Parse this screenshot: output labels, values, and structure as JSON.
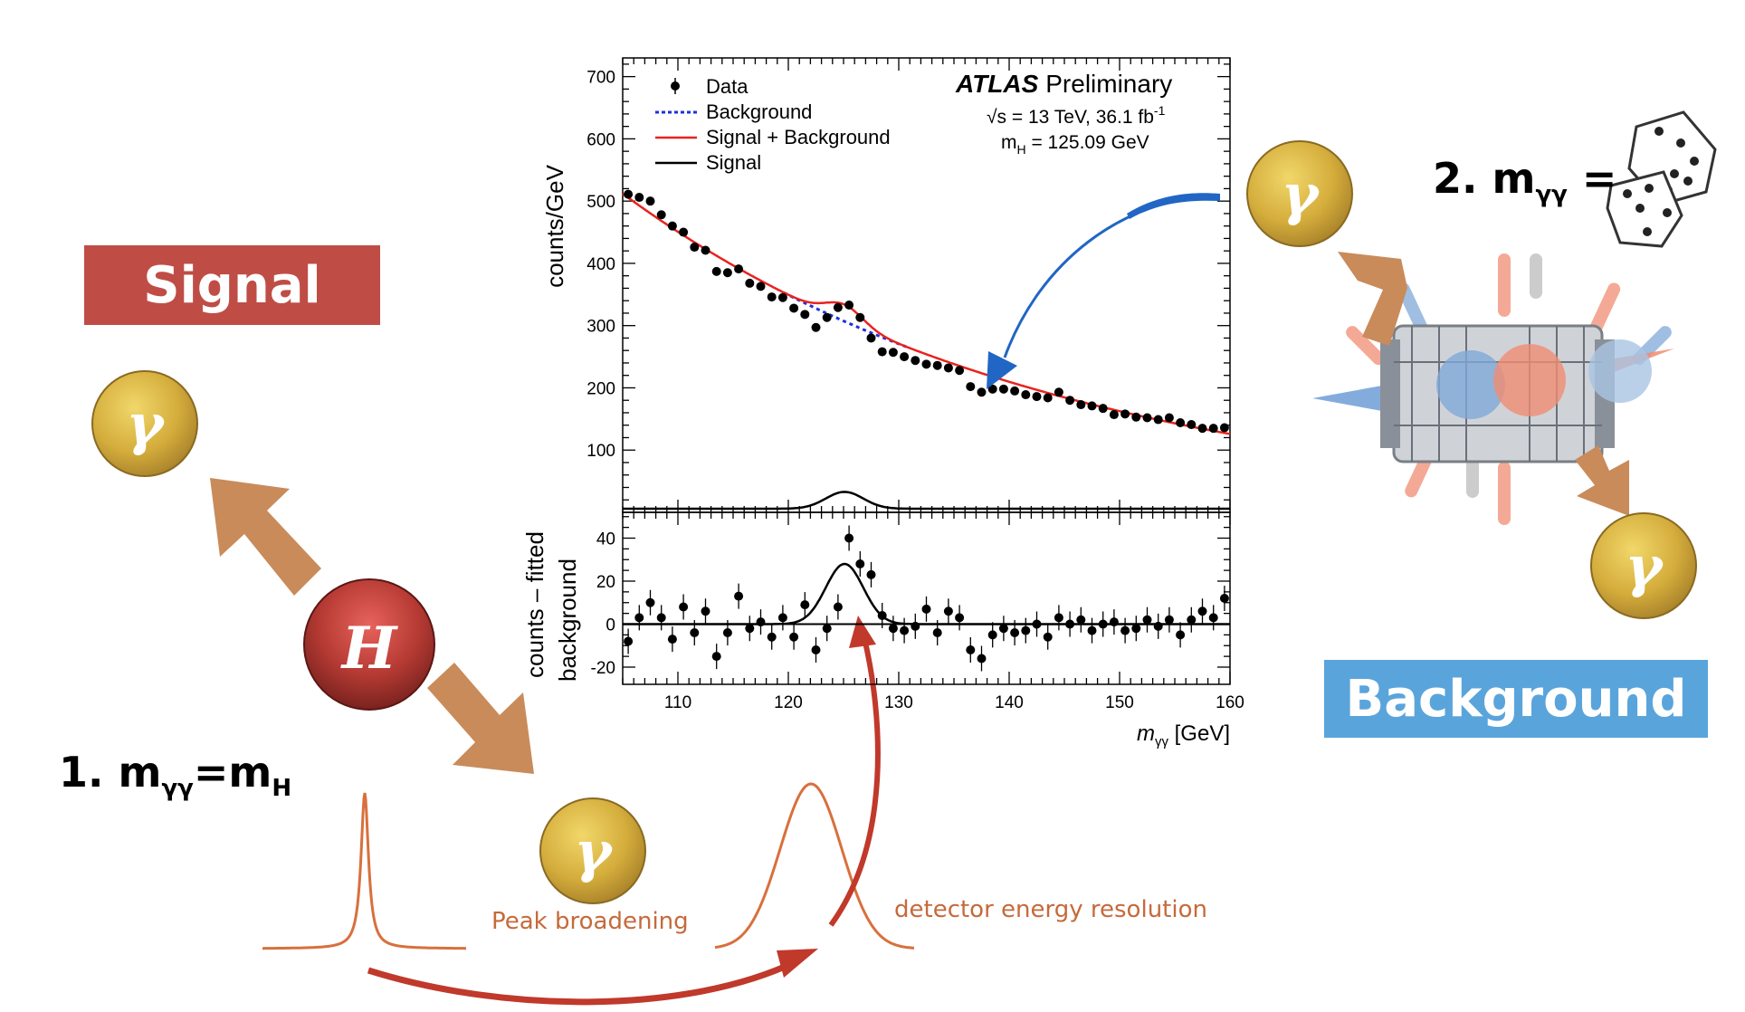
{
  "colors": {
    "signal_banner": "#bf4d46",
    "background_banner": "#5aa4dc",
    "photon_gold": "#d4ad3c",
    "higgs_red": "#a3302c",
    "arrow_orange": "#c97d4a",
    "peak_orange": "#d8703d",
    "curve_red": "#c0392b",
    "arrow_blue": "#2166c4",
    "fit_red": "#e8231f",
    "bkg_blue": "#1f2fe0"
  },
  "labels": {
    "signal": "Signal",
    "background": "Background",
    "photon_symbol": "γ",
    "higgs_symbol": "H",
    "condition_signal": {
      "prefix": "1. m",
      "sub": "γγ",
      "eq": "=m",
      "sub2": "H"
    },
    "condition_background": {
      "prefix": "2. m",
      "sub": "γγ",
      "eq": " ="
    },
    "peak_broadening": "Peak broadening",
    "detector_resolution": "detector energy resolution"
  },
  "icons": [
    "dice-icon",
    "detector-icon",
    "photon-icon",
    "higgs-icon"
  ],
  "plot": {
    "experiment": "ATLAS",
    "experiment_note": "Preliminary",
    "energy_line": "√s = 13 TeV, 36.1 fb",
    "energy_sup": "-1",
    "mass_line": "m",
    "mass_sub": "H",
    "mass_value": " = 125.09 GeV",
    "legend": [
      "Data",
      "Background",
      "Signal + Background",
      "Signal"
    ],
    "top_ylabel": "counts/GeV",
    "bottom_ylabel_1": "counts – fitted",
    "bottom_ylabel_2": "background",
    "xlabel_main": "m",
    "xlabel_sub": "γγ",
    "xlabel_unit": " [GeV]",
    "x_ticks": [
      "110",
      "120",
      "130",
      "140",
      "150",
      "160"
    ],
    "top_y_ticks": [
      "100",
      "200",
      "300",
      "400",
      "500",
      "600",
      "700"
    ],
    "bottom_y_ticks": [
      "40",
      "20",
      "0",
      "-20"
    ]
  },
  "chart_data": [
    {
      "type": "scatter",
      "panel": "main",
      "xlabel": "mγγ [GeV]",
      "ylabel": "counts/GeV",
      "xlim": [
        105,
        160
      ],
      "ylim": [
        0,
        730
      ],
      "points": [
        [
          105.5,
          511
        ],
        [
          106.5,
          506
        ],
        [
          107.5,
          500
        ],
        [
          108.5,
          478
        ],
        [
          109.5,
          460
        ],
        [
          110.5,
          450
        ],
        [
          111.5,
          426
        ],
        [
          112.5,
          421
        ],
        [
          113.5,
          387
        ],
        [
          114.5,
          385
        ],
        [
          115.5,
          391
        ],
        [
          116.5,
          368
        ],
        [
          117.5,
          363
        ],
        [
          118.5,
          346
        ],
        [
          119.5,
          345
        ],
        [
          120.5,
          328
        ],
        [
          121.5,
          318
        ],
        [
          122.5,
          297
        ],
        [
          123.5,
          313
        ],
        [
          124.5,
          329
        ],
        [
          125.5,
          333
        ],
        [
          126.5,
          313
        ],
        [
          127.5,
          280
        ],
        [
          128.5,
          258
        ],
        [
          129.5,
          257
        ],
        [
          130.5,
          250
        ],
        [
          131.5,
          244
        ],
        [
          132.5,
          238
        ],
        [
          133.5,
          236
        ],
        [
          134.5,
          232
        ],
        [
          135.5,
          228
        ],
        [
          136.5,
          202
        ],
        [
          137.5,
          193
        ],
        [
          138.5,
          198
        ],
        [
          139.5,
          198
        ],
        [
          140.5,
          195
        ],
        [
          141.5,
          189
        ],
        [
          142.5,
          186
        ],
        [
          143.5,
          184
        ],
        [
          144.5,
          193
        ],
        [
          145.5,
          180
        ],
        [
          146.5,
          173
        ],
        [
          147.5,
          171
        ],
        [
          148.5,
          167
        ],
        [
          149.5,
          157
        ],
        [
          150.5,
          158
        ],
        [
          151.5,
          153
        ],
        [
          152.5,
          152
        ],
        [
          153.5,
          149
        ],
        [
          154.5,
          152
        ],
        [
          155.5,
          144
        ],
        [
          156.5,
          141
        ],
        [
          157.5,
          135
        ],
        [
          158.5,
          135
        ],
        [
          159.5,
          136
        ]
      ],
      "background_fit": {
        "form": "exponential",
        "a": 512,
        "b": 0.0255,
        "x0": 105
      },
      "signal": {
        "mean": 125.09,
        "sigma": 1.7,
        "amplitude": 27
      }
    },
    {
      "type": "scatter",
      "panel": "residual",
      "xlabel": "mγγ [GeV]",
      "ylabel": "counts – fitted background",
      "xlim": [
        105,
        160
      ],
      "ylim": [
        -28,
        52
      ],
      "points": [
        [
          105.5,
          -8
        ],
        [
          106.5,
          3
        ],
        [
          107.5,
          10
        ],
        [
          108.5,
          3
        ],
        [
          109.5,
          -7
        ],
        [
          110.5,
          8
        ],
        [
          111.5,
          -4
        ],
        [
          112.5,
          6
        ],
        [
          113.5,
          -15
        ],
        [
          114.5,
          -4
        ],
        [
          115.5,
          13
        ],
        [
          116.5,
          -2
        ],
        [
          117.5,
          1
        ],
        [
          118.5,
          -6
        ],
        [
          119.5,
          3
        ],
        [
          120.5,
          -6
        ],
        [
          121.5,
          9
        ],
        [
          122.5,
          -12
        ],
        [
          123.5,
          -2
        ],
        [
          124.5,
          8
        ],
        [
          125.5,
          40
        ],
        [
          126.5,
          28
        ],
        [
          127.5,
          23
        ],
        [
          128.5,
          4
        ],
        [
          129.5,
          -2
        ],
        [
          130.5,
          -3
        ],
        [
          131.5,
          -1
        ],
        [
          132.5,
          7
        ],
        [
          133.5,
          -4
        ],
        [
          134.5,
          6
        ],
        [
          135.5,
          3
        ],
        [
          136.5,
          -12
        ],
        [
          137.5,
          -16
        ],
        [
          138.5,
          -5
        ],
        [
          139.5,
          -2
        ],
        [
          140.5,
          -4
        ],
        [
          141.5,
          -3
        ],
        [
          142.5,
          0
        ],
        [
          143.5,
          -6
        ],
        [
          144.5,
          3
        ],
        [
          145.5,
          0
        ],
        [
          146.5,
          2
        ],
        [
          147.5,
          -3
        ],
        [
          148.5,
          0
        ],
        [
          149.5,
          1
        ],
        [
          150.5,
          -3
        ],
        [
          151.5,
          -2
        ],
        [
          152.5,
          2
        ],
        [
          153.5,
          -1
        ],
        [
          154.5,
          2
        ],
        [
          155.5,
          -5
        ],
        [
          156.5,
          2
        ],
        [
          157.5,
          6
        ],
        [
          158.5,
          3
        ],
        [
          159.5,
          12
        ]
      ],
      "signal": {
        "mean": 125.09,
        "sigma": 1.7,
        "amplitude": 28
      }
    }
  ]
}
